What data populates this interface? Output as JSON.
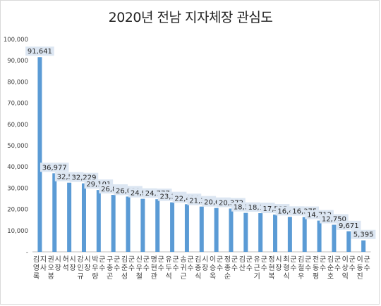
{
  "chart_data": {
    "type": "bar",
    "title": "2020년 전남 지자체장 관심도",
    "xlabel": "",
    "ylabel": "",
    "ylim": [
      0,
      100000
    ],
    "yticks": [
      0,
      10000,
      20000,
      30000,
      40000,
      50000,
      60000,
      70000,
      80000,
      90000,
      100000
    ],
    "ytick_labels": [
      "-",
      "10,000",
      "20,000",
      "30,000",
      "40,000",
      "50,000",
      "60,000",
      "70,000",
      "80,000",
      "90,000",
      "100,000"
    ],
    "grid": false,
    "legend": "none",
    "categories": [
      "김영록 지사",
      "권오봉 시장",
      "허석 시장",
      "강인규 시장",
      "박우량 군수",
      "구충곤 군수",
      "김준성 군수",
      "신우철 군수",
      "명현관 군수",
      "유두석 군수",
      "송귀근 군수",
      "김종식 시장",
      "이승옥 군수",
      "정종순 군수",
      "김산 군수",
      "유근기 군수",
      "정현복 시장",
      "최형식 군수",
      "김철우 군수",
      "전동평 군수",
      "김순호 군수",
      "이상익 군수",
      "이동진 군수"
    ],
    "values": [
      91641,
      36977,
      32550,
      32229,
      29101,
      26826,
      26021,
      24956,
      24777,
      23303,
      22424,
      21303,
      20635,
      20372,
      18326,
      18192,
      17535,
      16452,
      16375,
      14712,
      12750,
      9671,
      5395
    ],
    "value_labels": [
      "91,641",
      "36,977",
      "32,550",
      "32,229",
      "29,101",
      "26,826",
      "26,021",
      "24,956",
      "24,777",
      "23,303",
      "22,424",
      "21,303",
      "20,635",
      "20,372",
      "18,326",
      "18,192",
      "17,535",
      "16,452",
      "16,375",
      "14,712",
      "12,750",
      "9,671",
      "5,395"
    ],
    "colors": {
      "bar": "#5b9bd5",
      "label_bg": "#dce6f2",
      "axis": "#bfbfbf",
      "text": "#404040"
    }
  }
}
